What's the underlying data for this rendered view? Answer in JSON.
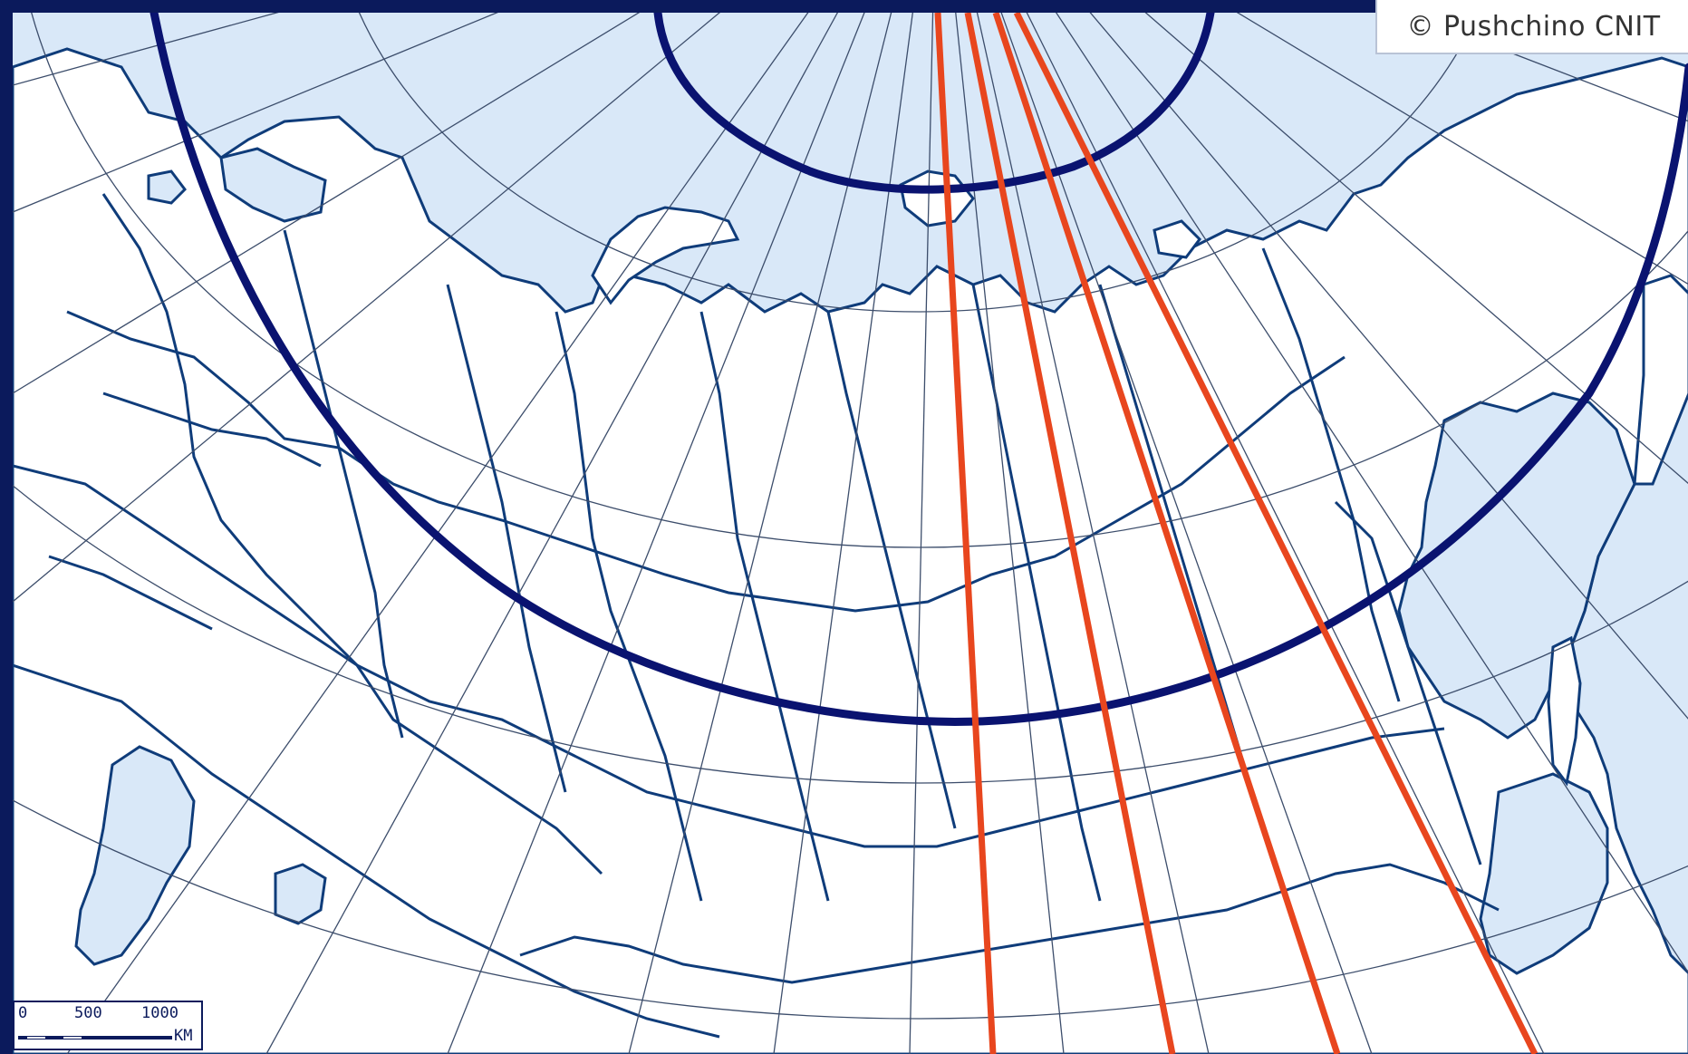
{
  "copyright": "© Pushchino CNIT",
  "scale": {
    "ticks": [
      "0",
      "500",
      "1000"
    ],
    "unit": "KM"
  },
  "colors": {
    "frame": "#0b1a5c",
    "water": "#d9e8f8",
    "land": "#ffffff",
    "borders": "#0f3c7a",
    "graticule": "#3c4d6b",
    "arc_lines": "#0a1370",
    "red_lines": "#e8461e"
  }
}
